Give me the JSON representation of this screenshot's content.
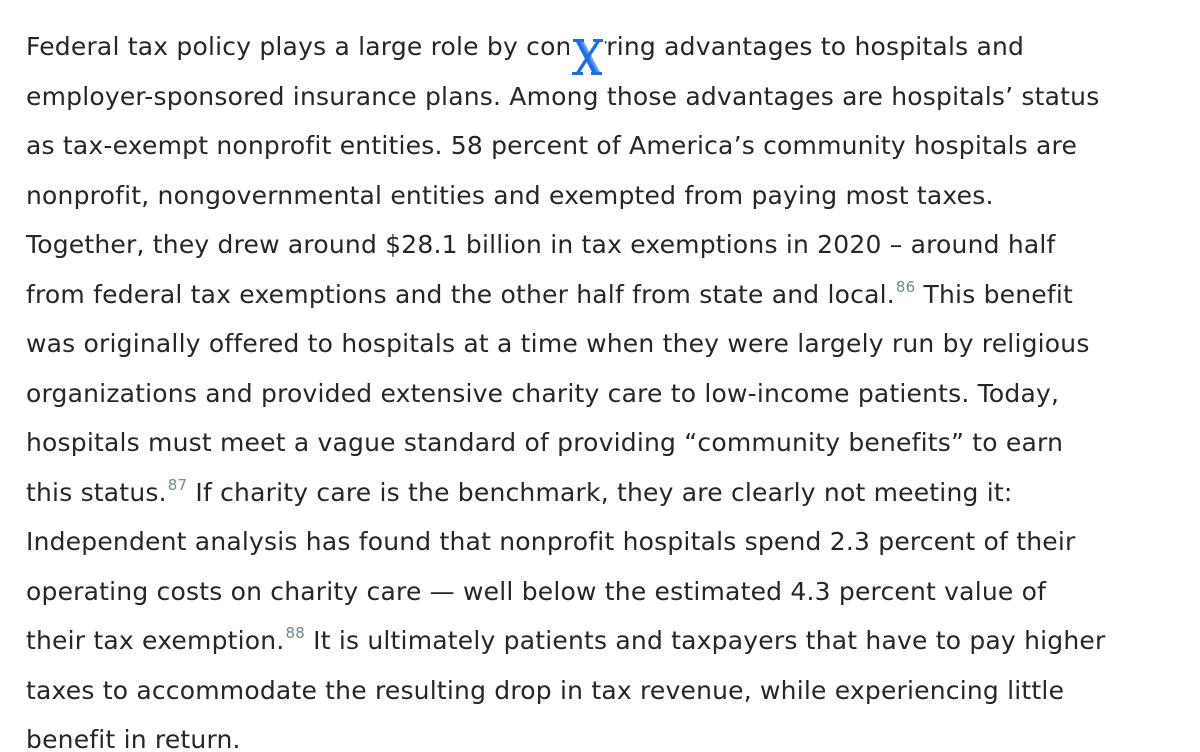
{
  "article": {
    "lines": [
      "Federal tax policy plays a large role by conferring advantages to hospitals and",
      "employer-sponsored insurance plans. Among those advantages are hospitals’ status",
      "as tax-exempt nonprofit entities. 58 percent of America’s community hospitals are",
      "nonprofit, nongovernmental entities and exempted from paying most taxes.",
      "Together, they drew around $28.1 billion in tax exemptions in 2020 – around half",
      "from federal tax exemptions and the other half from state and local.",
      " This benefit",
      "was originally offered to hospitals at a time when they were largely run by religious",
      "organizations and provided extensive charity care to low-income patients. Today,",
      "hospitals must meet a vague standard of providing “community benefits” to earn",
      "this status.",
      " If charity care is the benchmark, they are clearly not meeting it:",
      "Independent analysis has found that nonprofit hospitals spend 2.3 percent of their",
      "operating costs on charity care — well below the estimated 4.3 percent value of",
      "their tax exemption.",
      " It is ultimately patients and taxpayers that have to pay higher",
      "taxes to accommodate the resulting drop in tax revenue, while experiencing little",
      "benefit in return."
    ],
    "footnotes": [
      "86",
      "87",
      "88"
    ]
  },
  "overlay": {
    "icon": "x-logo-icon",
    "color": "#1d6fe0"
  },
  "colors": {
    "text": "#262626",
    "footnote": "#6e8a8c",
    "background": "#ffffff"
  }
}
